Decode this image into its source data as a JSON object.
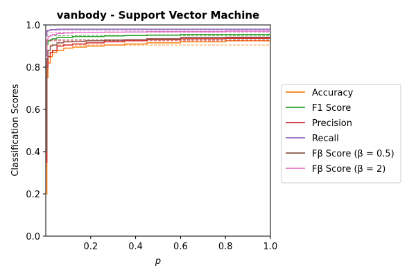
{
  "chart_data": {
    "type": "line",
    "title": "vanbody - Support Vector Machine",
    "xlabel": "p",
    "ylabel": "Classification Scores",
    "xlim": [
      0.0,
      1.0
    ],
    "ylim": [
      0.0,
      1.0
    ],
    "x_ticks": [
      "0.2",
      "0.4",
      "0.6",
      "0.8",
      "1.0"
    ],
    "y_ticks": [
      "0.0",
      "0.2",
      "0.4",
      "0.6",
      "0.8",
      "1.0"
    ],
    "grid": false,
    "legend_position": "right",
    "series": [
      {
        "name": "Accuracy",
        "color": "#ff7f0e",
        "x": [
          0.0,
          0.005,
          0.01,
          0.02,
          0.03,
          0.05,
          0.08,
          0.12,
          0.18,
          0.26,
          0.35,
          0.45,
          0.6,
          0.8,
          1.0
        ],
        "y": [
          0.2,
          0.75,
          0.82,
          0.85,
          0.87,
          0.88,
          0.89,
          0.895,
          0.9,
          0.905,
          0.91,
          0.915,
          0.92,
          0.925,
          0.925
        ],
        "reference": 0.905
      },
      {
        "name": "F1 Score",
        "color": "#2ca02c",
        "x": [
          0.0,
          0.005,
          0.01,
          0.02,
          0.03,
          0.05,
          0.08,
          0.12,
          0.18,
          0.26,
          0.35,
          0.45,
          0.6,
          0.8,
          1.0
        ],
        "y": [
          0.85,
          0.91,
          0.925,
          0.93,
          0.935,
          0.94,
          0.94,
          0.945,
          0.945,
          0.948,
          0.95,
          0.952,
          0.955,
          0.955,
          0.955
        ],
        "reference": 0.95
      },
      {
        "name": "Precision",
        "color": "#d62728",
        "x": [
          0.0,
          0.005,
          0.01,
          0.02,
          0.03,
          0.05,
          0.08,
          0.12,
          0.18,
          0.26,
          0.35,
          0.45,
          0.6,
          0.8,
          1.0
        ],
        "y": [
          0.35,
          0.8,
          0.85,
          0.87,
          0.88,
          0.9,
          0.905,
          0.91,
          0.915,
          0.92,
          0.925,
          0.93,
          0.935,
          0.937,
          0.937
        ],
        "reference": 0.925
      },
      {
        "name": "Recall",
        "color": "#9467bd",
        "x": [
          0.0,
          0.005,
          0.01,
          0.02,
          0.03,
          0.05,
          0.08,
          0.12,
          0.18,
          0.26,
          0.35,
          0.45,
          0.6,
          0.8,
          1.0
        ],
        "y": [
          0.95,
          0.97,
          0.975,
          0.978,
          0.978,
          0.98,
          0.98,
          0.98,
          0.98,
          0.98,
          0.98,
          0.98,
          0.98,
          0.98,
          0.98
        ],
        "reference": 0.975
      },
      {
        "name": "Fβ Score (β = 0.5)",
        "color": "#8c564b",
        "x": [
          0.0,
          0.005,
          0.01,
          0.02,
          0.03,
          0.05,
          0.08,
          0.12,
          0.18,
          0.26,
          0.35,
          0.45,
          0.6,
          0.8,
          1.0
        ],
        "y": [
          0.4,
          0.84,
          0.88,
          0.9,
          0.905,
          0.915,
          0.92,
          0.922,
          0.925,
          0.928,
          0.93,
          0.935,
          0.94,
          0.942,
          0.942
        ],
        "reference": 0.93
      },
      {
        "name": "Fβ Score (β = 2)",
        "color": "#e377c2",
        "x": [
          0.0,
          0.005,
          0.01,
          0.02,
          0.03,
          0.05,
          0.08,
          0.12,
          0.18,
          0.26,
          0.35,
          0.45,
          0.6,
          0.8,
          1.0
        ],
        "y": [
          0.85,
          0.93,
          0.945,
          0.95,
          0.955,
          0.96,
          0.962,
          0.965,
          0.965,
          0.966,
          0.967,
          0.968,
          0.968,
          0.97,
          0.97
        ],
        "reference": 0.965
      }
    ]
  }
}
